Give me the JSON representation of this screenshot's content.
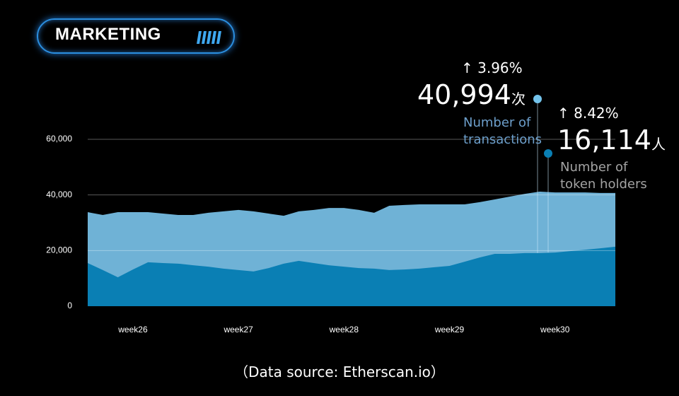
{
  "header": {
    "title": "MARKETING"
  },
  "chart_data": {
    "type": "area",
    "categories": [
      null,
      null,
      null,
      "week26",
      null,
      null,
      null,
      null,
      null,
      null,
      "week27",
      null,
      null,
      null,
      null,
      null,
      null,
      "week28",
      null,
      null,
      null,
      null,
      null,
      null,
      "week29",
      null,
      null,
      null,
      null,
      null,
      null,
      "week30",
      null,
      null,
      null,
      null
    ],
    "series": [
      {
        "name": "Number of transactions",
        "color": "#6fb2d6",
        "values": [
          33800,
          32800,
          33800,
          33800,
          33800,
          33300,
          32800,
          32800,
          33600,
          34100,
          34600,
          34100,
          33300,
          32500,
          34100,
          34600,
          35300,
          35300,
          34600,
          33600,
          36100,
          36400,
          36600,
          36600,
          36600,
          36600,
          37400,
          38400,
          39400,
          40400,
          41200,
          40900,
          40900,
          40900,
          40700,
          40700
        ]
      },
      {
        "name": "Number of token holders",
        "color": "#0a7fb4",
        "values": [
          15500,
          13000,
          10400,
          13200,
          15800,
          15500,
          15300,
          14700,
          14200,
          13500,
          13000,
          12500,
          13700,
          15300,
          16300,
          15500,
          14700,
          14200,
          13700,
          13500,
          13000,
          13200,
          13500,
          14000,
          14500,
          16000,
          17500,
          18800,
          18800,
          19100,
          19100,
          19300,
          19800,
          20300,
          20800,
          21400
        ]
      }
    ],
    "ylim": [
      0,
      60000
    ],
    "yticks": [
      0,
      {
        "value": 20000,
        "label": "20,000"
      },
      {
        "value": 40000,
        "label": "40,000"
      },
      {
        "value": 60000,
        "label": "60,000"
      }
    ],
    "grid": true,
    "annotations": [
      {
        "change": "↑ 3.96%",
        "value": "40,994",
        "unit": "次"
      },
      {
        "change": "↑ 8.42%",
        "value": "16,114",
        "unit": "人"
      }
    ]
  },
  "footer": {
    "source": "（Data source: Etherscan.io）"
  }
}
